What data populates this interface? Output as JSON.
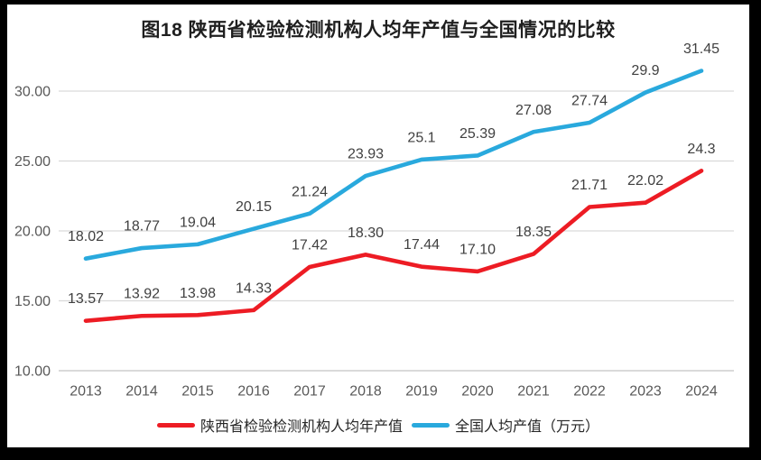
{
  "chart_data": {
    "type": "line",
    "title": "图18 陕西省检验检测机构人均年产值与全国情况的比较",
    "x": [
      "2013",
      "2014",
      "2015",
      "2016",
      "2017",
      "2018",
      "2019",
      "2020",
      "2021",
      "2022",
      "2023",
      "2024"
    ],
    "series": [
      {
        "name": "陕西省检验检测机构人均年产值",
        "color": "#ed1c24",
        "values": [
          13.57,
          13.92,
          13.98,
          14.33,
          17.42,
          18.3,
          17.44,
          17.1,
          18.35,
          21.71,
          22.02,
          24.3
        ],
        "labels": [
          "13.57",
          "13.92",
          "13.98",
          "14.33",
          "17.42",
          "18.30",
          "17.44",
          "17.10",
          "18.35",
          "21.71",
          "22.02",
          "24.3"
        ]
      },
      {
        "name": "全国人均产值（万元）",
        "color": "#29a9dd",
        "values": [
          18.02,
          18.77,
          19.04,
          20.15,
          21.24,
          23.93,
          25.1,
          25.39,
          27.08,
          27.74,
          29.9,
          31.45
        ],
        "labels": [
          "18.02",
          "18.77",
          "19.04",
          "20.15",
          "21.24",
          "23.93",
          "25.1",
          "25.39",
          "27.08",
          "27.74",
          "29.9",
          "31.45"
        ]
      }
    ],
    "xlabel": "",
    "ylabel": "",
    "ylim": [
      10,
      32.5
    ],
    "yticks": [
      10,
      15,
      20,
      25,
      30
    ],
    "ytick_labels": [
      "10.00",
      "15.00",
      "20.00",
      "25.00",
      "30.00"
    ],
    "grid": true,
    "legend_position": "bottom",
    "colors": {
      "gridline": "#d9d9d9",
      "baseline": "#c4c4c4",
      "tick_text": "#595959",
      "data_label_text": "#404040"
    }
  }
}
